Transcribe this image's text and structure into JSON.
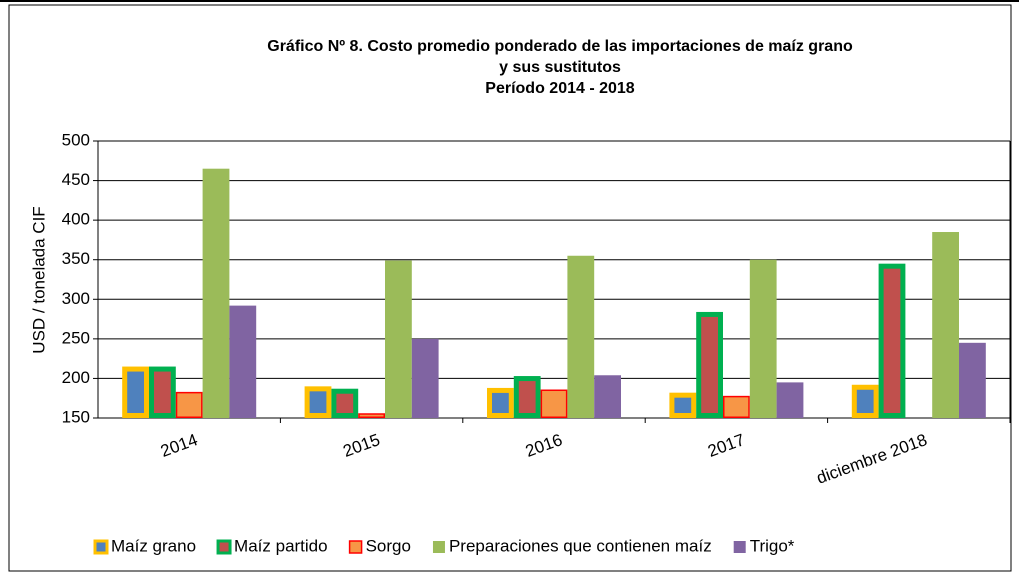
{
  "chart_data": {
    "type": "bar",
    "title": [
      "Gráfico Nº 8. Costo promedio ponderado de las importaciones de maíz grano",
      "y sus sustitutos",
      "Período 2014 - 2018"
    ],
    "y_label": "USD / tonelada CIF",
    "categories": [
      "2014",
      "2015",
      "2016",
      "2017",
      "diciembre 2018"
    ],
    "series": [
      {
        "name": "Maíz grano",
        "color": "#4f81bd",
        "border": "#ffc000",
        "values": [
          215,
          190,
          188,
          182,
          192
        ]
      },
      {
        "name": "Maíz partido",
        "color": "#c0504d",
        "border": "#00b050",
        "values": [
          215,
          187,
          203,
          284,
          345
        ]
      },
      {
        "name": "Sorgo",
        "color": "#f79646",
        "border": "#ff0000",
        "values": [
          183,
          156,
          186,
          178,
          null
        ]
      },
      {
        "name": "Preparaciones que contienen maíz",
        "color": "#9bbb59",
        "border": null,
        "values": [
          465,
          349,
          355,
          350,
          385
        ]
      },
      {
        "name": "Trigo*",
        "color": "#8064a2",
        "border": null,
        "values": [
          292,
          250,
          204,
          195,
          245
        ]
      }
    ],
    "ylim": [
      150,
      500
    ],
    "yticks": [
      150,
      200,
      250,
      300,
      350,
      400,
      450,
      500
    ],
    "grid": true,
    "legend": "bottom"
  }
}
